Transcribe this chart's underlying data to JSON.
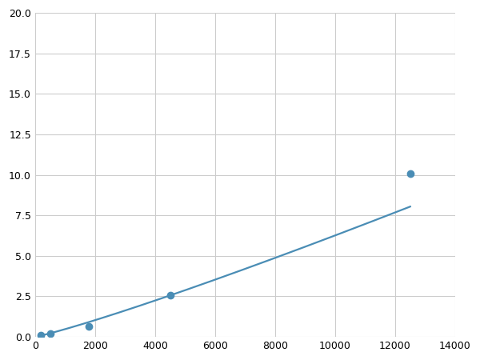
{
  "x_points": [
    200,
    500,
    1800,
    4500,
    12500
  ],
  "y_points": [
    0.1,
    0.2,
    0.62,
    2.55,
    10.1
  ],
  "line_color": "#4a8db5",
  "marker_color": "#4a8db5",
  "xlim": [
    0,
    14000
  ],
  "ylim": [
    0,
    20.0
  ],
  "xticks": [
    0,
    2000,
    4000,
    6000,
    8000,
    10000,
    12000,
    14000
  ],
  "yticks": [
    0.0,
    2.5,
    5.0,
    7.5,
    10.0,
    12.5,
    15.0,
    17.5,
    20.0
  ],
  "grid_color": "#cccccc",
  "background_color": "#ffffff",
  "marker_size": 6,
  "line_width": 1.6
}
